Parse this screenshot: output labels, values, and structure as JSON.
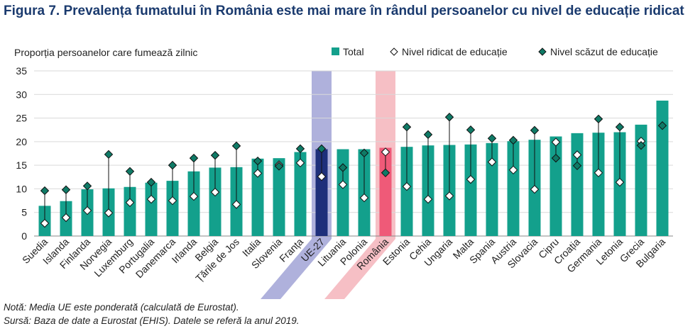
{
  "title": "Figura 7. Prevalența fumatului în România este mai mare în rândul persoanelor cu nivel de educație ridicat",
  "note": "Notă: Media UE este ponderată (calculată de Eurostat).",
  "source": "Sursă: Baza de date a Eurostat (EHIS). Datele se referă la anul 2019.",
  "colors": {
    "bar": "#13a08c",
    "eu_bar": "#1e2f7a",
    "eu_band": "#a6a8d8",
    "ro_bar": "#ef5a78",
    "ro_band": "#f5b8bf",
    "marker": "#0f7a66",
    "axis_text": "#222222",
    "grid": "#d9d9d9"
  },
  "chart_data": {
    "type": "bar",
    "ylabel": "Proporția persoanelor care fumează zilnic",
    "ylim": [
      0,
      35
    ],
    "yticks": [
      0,
      5,
      10,
      15,
      20,
      25,
      30,
      35
    ],
    "grid": true,
    "legend_position": "top-right",
    "highlight": [
      "UE-27",
      "România"
    ],
    "categories": [
      "Suedia",
      "Islanda",
      "Finlanda",
      "Norvegia",
      "Luxemburg",
      "Portugalia",
      "Danemarca",
      "Irlanda",
      "Belgia",
      "Țările de Jos",
      "Italia",
      "Slovenia",
      "Franța",
      "UE-27",
      "Lituania",
      "Polonia",
      "România",
      "Estonia",
      "Cehia",
      "Ungaria",
      "Malta",
      "Spania",
      "Austria",
      "Slovacia",
      "Cipru",
      "Croația",
      "Germania",
      "Letonia",
      "Grecia",
      "Bulgaria"
    ],
    "series": [
      {
        "name": "Total",
        "kind": "bar",
        "values": [
          6.4,
          7.4,
          9.9,
          10.1,
          10.4,
          11.3,
          11.7,
          13.7,
          14.5,
          14.6,
          16.4,
          16.5,
          17.8,
          18.4,
          18.4,
          18.4,
          18.7,
          18.9,
          19.2,
          19.3,
          19.4,
          19.7,
          20.1,
          20.4,
          21.1,
          21.8,
          21.9,
          22.0,
          23.6,
          28.7
        ]
      },
      {
        "name": "Nivel ridicat de educație",
        "kind": "marker",
        "values": [
          2.7,
          3.9,
          5.4,
          4.9,
          7.1,
          7.8,
          7.5,
          8.4,
          9.3,
          6.7,
          13.3,
          15.1,
          15.5,
          12.6,
          10.9,
          8.1,
          17.8,
          10.5,
          7.8,
          8.5,
          12.0,
          15.7,
          14.0,
          9.9,
          19.9,
          17.2,
          13.4,
          11.4,
          20.1,
          null
        ]
      },
      {
        "name": "Nivel scăzut de educație",
        "kind": "marker",
        "values": [
          9.6,
          9.8,
          10.6,
          17.3,
          13.7,
          11.4,
          15.0,
          16.5,
          17.1,
          19.1,
          15.9,
          14.8,
          18.5,
          18.5,
          14.5,
          17.6,
          13.4,
          23.1,
          21.5,
          25.2,
          22.5,
          20.7,
          20.3,
          22.4,
          16.5,
          14.9,
          24.8,
          23.1,
          19.2,
          23.4
        ]
      }
    ]
  }
}
